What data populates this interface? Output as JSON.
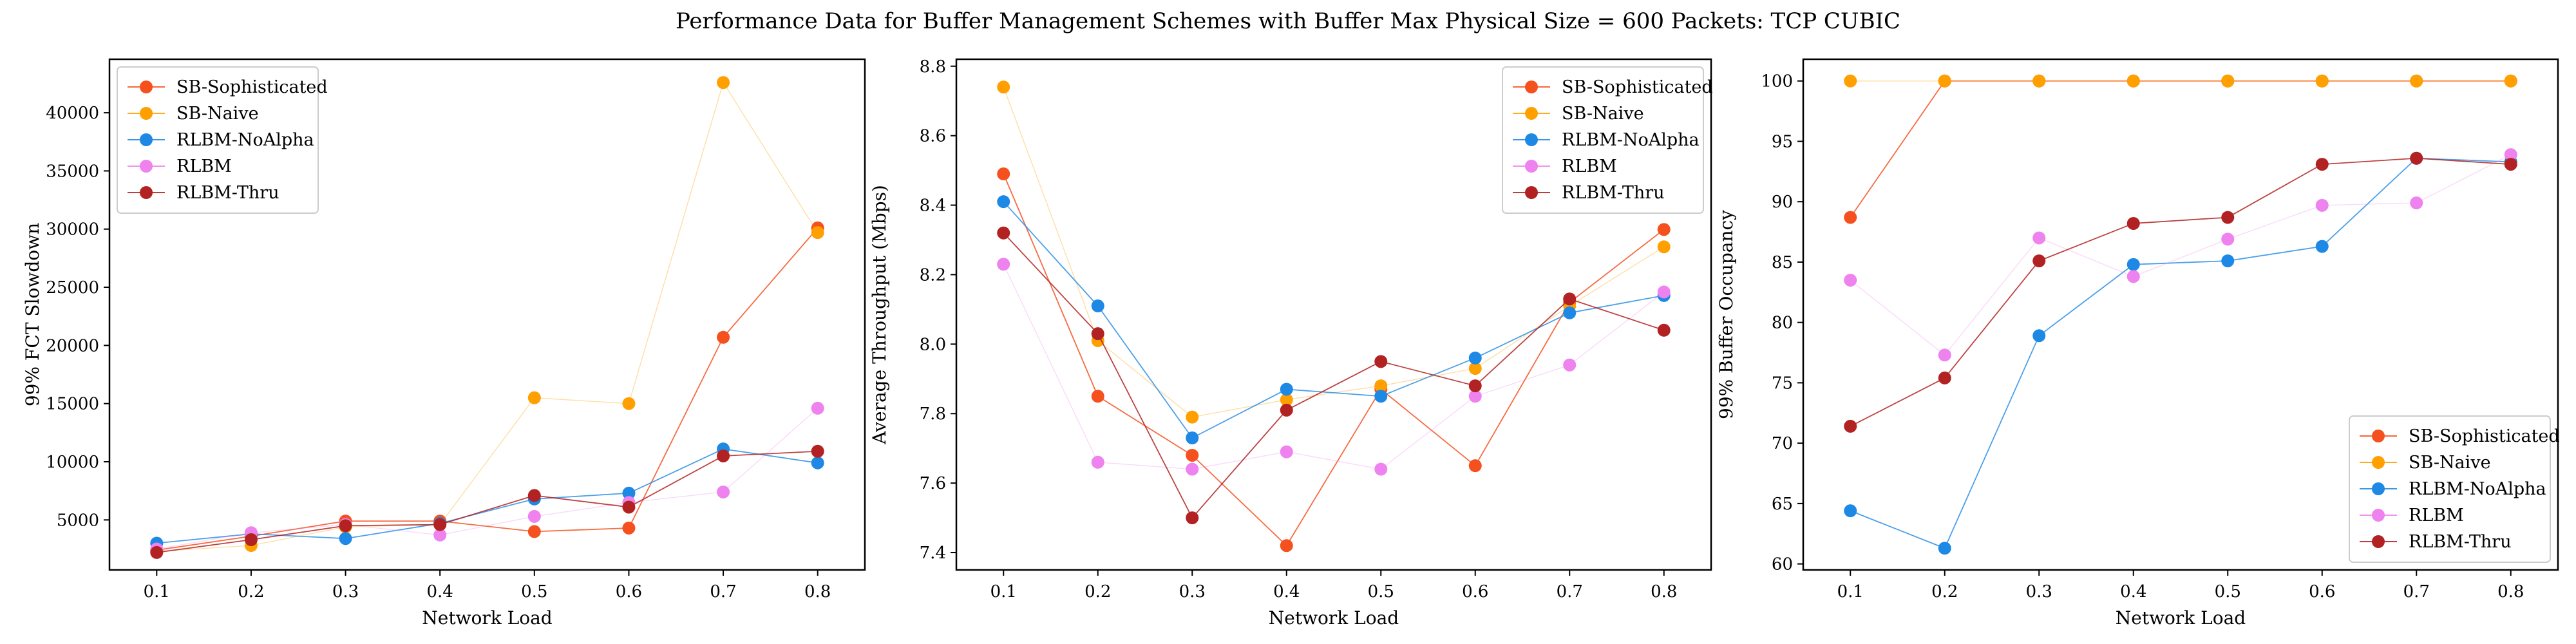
{
  "figure": {
    "title": "Performance Data for Buffer Management Schemes with Buffer Max Physical Size = 600 Packets: TCP CUBIC"
  },
  "colors": {
    "SB-Sophisticated": "#f4511e",
    "SB-Naive": "#ffa000",
    "RLBM-NoAlpha": "#1e88e5",
    "RLBM": "#ee82ee",
    "RLBM-Thru": "#b22222"
  },
  "chart_data": [
    {
      "type": "line",
      "xlabel": "Network Load",
      "ylabel": "99% FCT Slowdown",
      "x": [
        0.1,
        0.2,
        0.3,
        0.4,
        0.5,
        0.6,
        0.7,
        0.8
      ],
      "xlim": [
        0.05,
        0.85
      ],
      "ylim": [
        700,
        44600
      ],
      "xticks": [
        "0.1",
        "0.2",
        "0.3",
        "0.4",
        "0.5",
        "0.6",
        "0.7",
        "0.8"
      ],
      "yticks": [
        5000,
        10000,
        15000,
        20000,
        25000,
        30000,
        35000,
        40000
      ],
      "legend": "upper left",
      "grid": false,
      "series": [
        {
          "name": "SB-Sophisticated",
          "values": [
            2400,
            3600,
            4900,
            4900,
            4000,
            4300,
            20700,
            30100
          ]
        },
        {
          "name": "SB-Naive",
          "values": [
            2300,
            2800,
            4400,
            4600,
            15500,
            15000,
            42600,
            29700
          ]
        },
        {
          "name": "RLBM-NoAlpha",
          "values": [
            3000,
            3800,
            3400,
            4700,
            6800,
            7300,
            11100,
            9900
          ]
        },
        {
          "name": "RLBM",
          "values": [
            2500,
            3900,
            4600,
            3700,
            5300,
            6500,
            7400,
            14600
          ]
        },
        {
          "name": "RLBM-Thru",
          "values": [
            2200,
            3300,
            4500,
            4600,
            7100,
            6100,
            10500,
            10900
          ]
        }
      ]
    },
    {
      "type": "line",
      "xlabel": "Network Load",
      "ylabel": "Average Throughput (Mbps)",
      "x": [
        0.1,
        0.2,
        0.3,
        0.4,
        0.5,
        0.6,
        0.7,
        0.8
      ],
      "xlim": [
        0.05,
        0.85
      ],
      "ylim": [
        7.35,
        8.82
      ],
      "xticks": [
        "0.1",
        "0.2",
        "0.3",
        "0.4",
        "0.5",
        "0.6",
        "0.7",
        "0.8"
      ],
      "yticks": [
        7.4,
        7.6,
        7.8,
        8.0,
        8.2,
        8.4,
        8.6,
        8.8
      ],
      "legend": "upper right",
      "grid": false,
      "series": [
        {
          "name": "SB-Sophisticated",
          "values": [
            8.49,
            7.85,
            7.68,
            7.42,
            7.87,
            7.65,
            8.12,
            8.33
          ]
        },
        {
          "name": "SB-Naive",
          "values": [
            8.74,
            8.01,
            7.79,
            7.84,
            7.88,
            7.93,
            8.11,
            8.28
          ]
        },
        {
          "name": "RLBM-NoAlpha",
          "values": [
            8.41,
            8.11,
            7.73,
            7.87,
            7.85,
            7.96,
            8.09,
            8.14
          ]
        },
        {
          "name": "RLBM",
          "values": [
            8.23,
            7.66,
            7.64,
            7.69,
            7.64,
            7.85,
            7.94,
            8.15
          ]
        },
        {
          "name": "RLBM-Thru",
          "values": [
            8.32,
            8.03,
            7.5,
            7.81,
            7.95,
            7.88,
            8.13,
            8.04
          ]
        }
      ]
    },
    {
      "type": "line",
      "xlabel": "Network Load",
      "ylabel": "99% Buffer Occupancy",
      "x": [
        0.1,
        0.2,
        0.3,
        0.4,
        0.5,
        0.6,
        0.7,
        0.8
      ],
      "xlim": [
        0.05,
        0.85
      ],
      "ylim": [
        59.5,
        101.8
      ],
      "xticks": [
        "0.1",
        "0.2",
        "0.3",
        "0.4",
        "0.5",
        "0.6",
        "0.7",
        "0.8"
      ],
      "yticks": [
        60,
        65,
        70,
        75,
        80,
        85,
        90,
        95,
        100
      ],
      "legend": "lower right",
      "grid": false,
      "series": [
        {
          "name": "SB-Sophisticated",
          "values": [
            88.7,
            100,
            100,
            100,
            100,
            100,
            100,
            100
          ]
        },
        {
          "name": "SB-Naive",
          "values": [
            100,
            100,
            100,
            100,
            100,
            100,
            100,
            100
          ]
        },
        {
          "name": "RLBM-NoAlpha",
          "values": [
            64.4,
            61.3,
            78.9,
            84.8,
            85.1,
            86.3,
            93.6,
            93.3
          ]
        },
        {
          "name": "RLBM",
          "values": [
            83.5,
            77.3,
            87.0,
            83.8,
            86.9,
            89.7,
            89.9,
            93.9
          ]
        },
        {
          "name": "RLBM-Thru",
          "values": [
            71.4,
            75.4,
            85.1,
            88.2,
            88.7,
            93.1,
            93.6,
            93.1
          ]
        }
      ]
    }
  ]
}
